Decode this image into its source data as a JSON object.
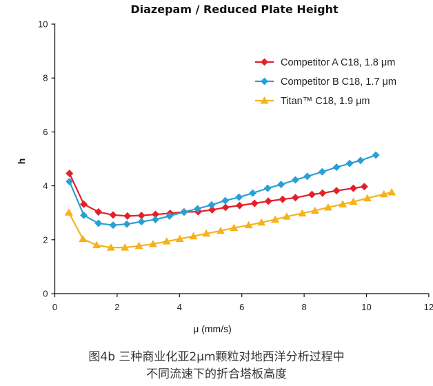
{
  "chart_data": {
    "type": "line",
    "title": "Diazepam / Reduced Plate Height",
    "xlabel": "μ (mm/s)",
    "ylabel": "h",
    "xlim": [
      0,
      12
    ],
    "ylim": [
      0,
      10
    ],
    "x_ticks": [
      "0",
      "2",
      "4",
      "6",
      "8",
      "10",
      "12"
    ],
    "y_ticks": [
      "0",
      "2",
      "4",
      "6",
      "8",
      "10"
    ],
    "grid": false,
    "legend_position": "top-right",
    "series": [
      {
        "name": "Competitor A C18, 1.8 μm",
        "color": "#e3202a",
        "marker": "diamond",
        "x": [
          0.47,
          0.93,
          1.4,
          1.87,
          2.33,
          2.78,
          3.23,
          3.7,
          4.15,
          4.6,
          5.05,
          5.48,
          5.93,
          6.41,
          6.85,
          7.31,
          7.72,
          8.25,
          8.59,
          9.04,
          9.58,
          9.93
        ],
        "y": [
          4.46,
          3.32,
          3.03,
          2.92,
          2.88,
          2.9,
          2.94,
          2.98,
          3.03,
          3.04,
          3.11,
          3.2,
          3.27,
          3.35,
          3.43,
          3.5,
          3.56,
          3.68,
          3.73,
          3.82,
          3.91,
          3.97
        ]
      },
      {
        "name": "Competitor B C18, 1.7 μm",
        "color": "#2a9fd6",
        "marker": "diamond",
        "x": [
          0.47,
          0.93,
          1.4,
          1.87,
          2.31,
          2.78,
          3.23,
          3.68,
          4.14,
          4.58,
          5.03,
          5.47,
          5.91,
          6.35,
          6.83,
          7.26,
          7.72,
          8.1,
          8.58,
          9.04,
          9.46,
          9.81,
          10.3
        ],
        "y": [
          4.16,
          2.91,
          2.61,
          2.54,
          2.58,
          2.67,
          2.75,
          2.88,
          3.03,
          3.15,
          3.29,
          3.45,
          3.58,
          3.73,
          3.91,
          4.05,
          4.22,
          4.35,
          4.52,
          4.69,
          4.83,
          4.94,
          5.14
        ]
      },
      {
        "name": "Titan™ C18, 1.9 μm",
        "color": "#f5b21b",
        "marker": "triangle",
        "x": [
          0.45,
          0.9,
          1.34,
          1.8,
          2.25,
          2.7,
          3.15,
          3.59,
          4.01,
          4.45,
          4.86,
          5.32,
          5.75,
          6.22,
          6.63,
          7.07,
          7.44,
          7.94,
          8.35,
          8.77,
          9.24,
          9.58,
          10.03,
          10.56,
          10.81
        ],
        "y": [
          3.01,
          2.03,
          1.8,
          1.71,
          1.71,
          1.77,
          1.84,
          1.94,
          2.03,
          2.13,
          2.23,
          2.33,
          2.44,
          2.54,
          2.64,
          2.75,
          2.86,
          2.98,
          3.08,
          3.2,
          3.32,
          3.41,
          3.54,
          3.69,
          3.76
        ]
      }
    ]
  },
  "caption": {
    "line1": "图4b 三种商业化亚2μm颗粒对地西洋分析过程中",
    "line2": "不同流速下的折合塔板高度"
  }
}
